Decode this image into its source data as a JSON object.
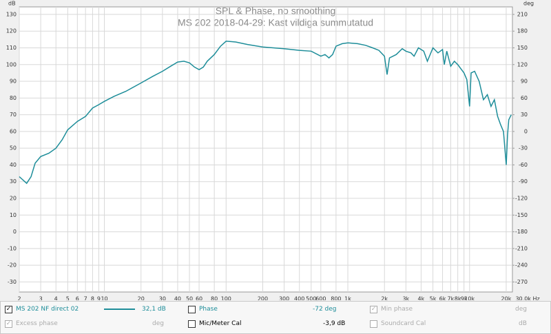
{
  "chart_data": {
    "type": "line",
    "title": "SPL & Phase, no smoothing",
    "subtitle": "MS 202 2018-04-29: Kast vildiga summutatud",
    "y_unit": "dB",
    "y2_unit": "deg",
    "log_x": true,
    "grid": true,
    "x": [
      2,
      2.3,
      2.5,
      2.7,
      3,
      3.5,
      4,
      4.5,
      5,
      6,
      7,
      8,
      9,
      10,
      12,
      15,
      20,
      25,
      30,
      35,
      40,
      45,
      50,
      55,
      60,
      65,
      70,
      80,
      90,
      100,
      120,
      150,
      200,
      300,
      400,
      500,
      600,
      650,
      700,
      750,
      800,
      900,
      1000,
      1200,
      1400,
      1600,
      1800,
      2000,
      2100,
      2200,
      2500,
      2800,
      3000,
      3300,
      3500,
      3800,
      4200,
      4500,
      5000,
      5500,
      6000,
      6200,
      6500,
      7000,
      7500,
      8000,
      9000,
      9500,
      10000,
      10300,
      11000,
      12000,
      13000,
      14000,
      15000,
      16000,
      17000,
      18000,
      19000,
      20000,
      20500,
      21000,
      22000
    ],
    "series": [
      {
        "name": "MS 202 NF direct 02",
        "color": "#1d8d99",
        "values": [
          33,
          29,
          33,
          41,
          45,
          47,
          50,
          55,
          61,
          66,
          69,
          74,
          76,
          78,
          81,
          84,
          89,
          93,
          96,
          99,
          101.5,
          102,
          101,
          98.5,
          97,
          98.5,
          102,
          106,
          111,
          114,
          113.5,
          112,
          110.5,
          109.5,
          108.5,
          108,
          105,
          106,
          104,
          106,
          111,
          112.5,
          113,
          112.5,
          111.5,
          110,
          108.5,
          105,
          94,
          104,
          106,
          109.5,
          108,
          107,
          105,
          110,
          108,
          102,
          110,
          107,
          109,
          100,
          108,
          99,
          102,
          100,
          95,
          91,
          75,
          95,
          96,
          90,
          79,
          82,
          75,
          79,
          69,
          64,
          60,
          40,
          58,
          67,
          70
        ]
      }
    ],
    "xlim": [
      2,
      22500
    ],
    "xticks": [
      2,
      3,
      4,
      5,
      6,
      7,
      8,
      9,
      10,
      20,
      30,
      40,
      50,
      60,
      80,
      100,
      200,
      300,
      400,
      500,
      600,
      800,
      {
        "value": 1000,
        "label": "1k"
      },
      {
        "value": 2000,
        "label": "2k"
      },
      {
        "value": 3000,
        "label": "3k"
      },
      {
        "value": 4000,
        "label": "4k"
      },
      {
        "value": 5000,
        "label": "5k"
      },
      {
        "value": 6000,
        "label": "6k"
      },
      {
        "value": 7000,
        "label": "7k"
      },
      {
        "value": 8000,
        "label": "8k"
      },
      {
        "value": 9000,
        "label": "9k"
      },
      {
        "value": 10000,
        "label": "10k"
      },
      {
        "value": 20000,
        "label": "20k"
      },
      {
        "value": 30000,
        "label": "30,0k Hz"
      }
    ],
    "ylim": [
      -36,
      134.5
    ],
    "yticks": [
      130,
      120,
      110,
      100,
      90,
      80,
      70,
      60,
      50,
      40,
      30,
      20,
      10,
      0,
      -10,
      -20,
      -30
    ],
    "y2lim": [
      -288,
      223.5
    ],
    "y2ticks": [
      210,
      180,
      150,
      120,
      90,
      60,
      30,
      0,
      -30,
      -60,
      -90,
      -120,
      -150,
      -180,
      -210,
      -240,
      -270
    ]
  },
  "legend_panel": {
    "readout": "32,1 dB",
    "phase": {
      "label": "Phase",
      "readout": "-72 deg"
    },
    "min_phase": {
      "label": "Min phase",
      "unit": "deg"
    },
    "excess_phase": {
      "label": "Excess phase",
      "unit": "deg"
    },
    "mic_cal": {
      "label": "Mic/Meter Cal",
      "readout": "-3,9 dB"
    },
    "soundcard_cal": {
      "label": "Soundcard Cal",
      "unit": "dB"
    }
  }
}
